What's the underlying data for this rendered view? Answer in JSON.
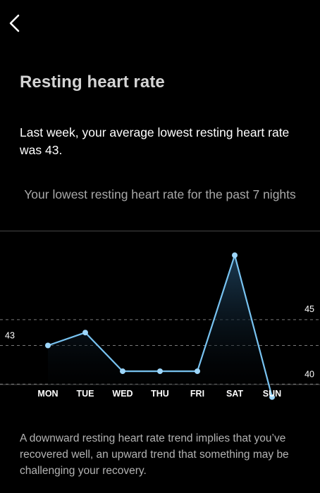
{
  "header": {
    "back_icon": "chevron-left-icon"
  },
  "title": "Resting heart rate",
  "summary": "Last week, your average lowest resting heart rate was 43.",
  "chart_caption": "Your lowest resting heart rate for the past 7 nights",
  "chart_data": {
    "type": "area",
    "categories": [
      "MON",
      "TUE",
      "WED",
      "THU",
      "FRI",
      "SAT",
      "SUN"
    ],
    "values": [
      43,
      44,
      41,
      41,
      41,
      50,
      39
    ],
    "reference_lines": [
      {
        "value": 45,
        "label": "45"
      },
      {
        "value": 43,
        "label": "43"
      },
      {
        "value": 40,
        "label": "40"
      }
    ],
    "grid": false,
    "line_color": "#78c3f1",
    "fill_color": "#1b3a52",
    "point_color": "#9dd6fa",
    "reference_line_color": "#7a7a7a"
  },
  "footnote": "A downward resting heart rate trend implies that you’ve recovered well, an upward trend that something may be challenging your recovery."
}
